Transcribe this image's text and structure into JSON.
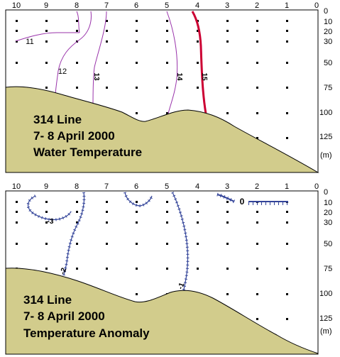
{
  "chart_data": [
    {
      "type": "contour",
      "title_lines": [
        "314 Line",
        "7- 8 April 2000",
        "Water Temperature"
      ],
      "x_ticks": [
        "10",
        "9",
        "8",
        "7",
        "6",
        "5",
        "4",
        "3",
        "2",
        "1",
        "0"
      ],
      "y_ticks": [
        "0",
        "10",
        "20",
        "30",
        "50",
        "75",
        "100",
        "125"
      ],
      "y_unit": "(m)",
      "contour_labels": [
        "11",
        "12",
        "13",
        "14",
        "15"
      ],
      "colors": {
        "bottom": "#d2cc8c",
        "contour": "#9933aa",
        "contour_15": "#cc0033",
        "dots": "#000000"
      }
    },
    {
      "type": "contour",
      "title_lines": [
        "314 Line",
        "7- 8 April 2000",
        "Temperature Anomaly"
      ],
      "x_ticks": [
        "10",
        "9",
        "8",
        "7",
        "6",
        "5",
        "4",
        "3",
        "2",
        "1",
        "0"
      ],
      "y_ticks": [
        "0",
        "10",
        "20",
        "30",
        "50",
        "75",
        "100",
        "125"
      ],
      "y_unit": "(m)",
      "contour_labels": [
        "-3",
        "-2",
        "-1",
        "0"
      ],
      "colors": {
        "bottom": "#d2cc8c",
        "contour": "#334499",
        "dots": "#000000"
      }
    }
  ]
}
